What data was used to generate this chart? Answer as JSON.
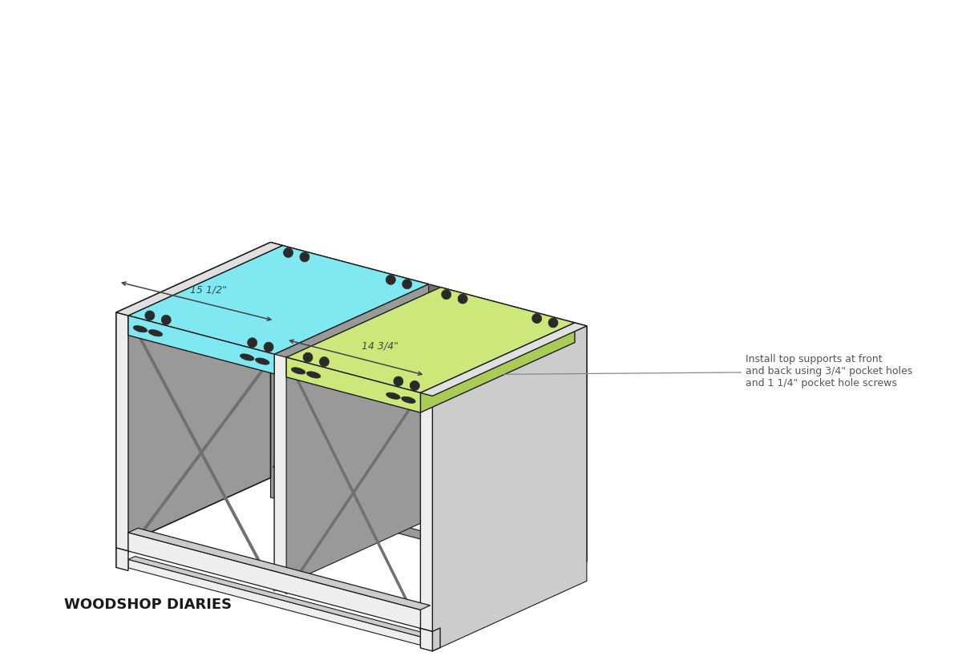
{
  "bg_color": "#ffffff",
  "figure_size": [
    12.0,
    8.19
  ],
  "dpi": 100,
  "watermark": "WOODSHOP DIARIES",
  "annotation_text": "Install top supports at front\nand back using 3/4\" pocket holes\nand 1 1/4\" pocket hole screws",
  "dim1_label": "15 1/2\"",
  "dim2_label": "14 3/4\"",
  "colors": {
    "light_gray": "#cccccc",
    "mid_gray": "#999999",
    "dark_gray": "#707070",
    "very_dark_gray": "#505050",
    "white_wood": "#eeeeee",
    "white_wood2": "#e0e0e0",
    "cyan_top": "#80e8f0",
    "cyan_side": "#55c8d4",
    "green_top": "#cce87a",
    "green_side": "#a8cc55",
    "outline": "#1a1a1a",
    "dim_line": "#444444",
    "annotation_line": "#888888",
    "annotation_text_color": "#555555",
    "watermark_color": "#1a1a1a",
    "hole_color": "#2a2a2a"
  }
}
